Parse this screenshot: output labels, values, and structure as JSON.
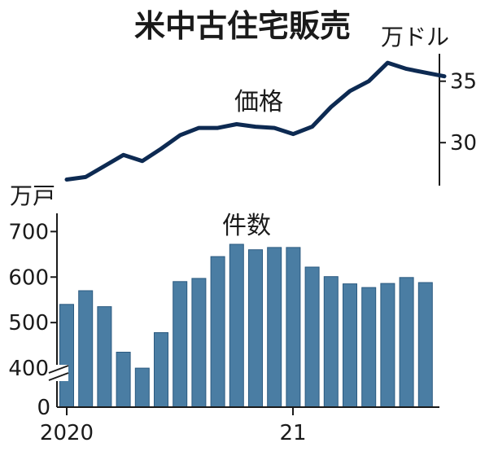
{
  "title": "米中古住宅販売",
  "chart_data": [
    {
      "type": "line",
      "series_label": "価格",
      "unit": "万ドル",
      "yticks": [
        30,
        35
      ],
      "ylim": [
        26.5,
        37.5
      ],
      "x": [
        "2020-01",
        "2020-02",
        "2020-03",
        "2020-04",
        "2020-05",
        "2020-06",
        "2020-07",
        "2020-08",
        "2020-09",
        "2020-10",
        "2020-11",
        "2020-12",
        "2021-01",
        "2021-02",
        "2021-03",
        "2021-04",
        "2021-05",
        "2021-06",
        "2021-07",
        "2021-08",
        "2021-09"
      ],
      "values": [
        27.0,
        27.2,
        28.1,
        29.0,
        28.5,
        29.5,
        30.6,
        31.2,
        31.2,
        31.5,
        31.3,
        31.2,
        30.7,
        31.3,
        32.9,
        34.2,
        35.0,
        36.5,
        36.0,
        35.7,
        35.4
      ]
    },
    {
      "type": "bar",
      "series_label": "件数",
      "unit": "万戸",
      "yticks": [
        400,
        500,
        600,
        700
      ],
      "ylim": [
        0,
        740
      ],
      "axis_break": true,
      "categories": [
        "2020-01",
        "2020-02",
        "2020-03",
        "2020-04",
        "2020-05",
        "2020-06",
        "2020-07",
        "2020-08",
        "2020-09",
        "2020-10",
        "2020-11",
        "2020-12",
        "2021-01",
        "2021-02",
        "2021-03",
        "2021-04",
        "2021-05",
        "2021-06",
        "2021-07",
        "2021-08",
        "2021-09"
      ],
      "values": [
        540,
        570,
        535,
        435,
        400,
        478,
        590,
        597,
        645,
        672,
        660,
        665,
        665,
        622,
        601,
        585,
        577,
        586,
        599,
        588,
        0
      ]
    }
  ],
  "x_axis_labels": [
    "2020",
    "21"
  ],
  "zero_label": "0",
  "colors": {
    "line": "#0d2a52",
    "bar": "#4a7da3",
    "bar_stroke": "#2b5a80",
    "axis": "#1a1a1a"
  }
}
